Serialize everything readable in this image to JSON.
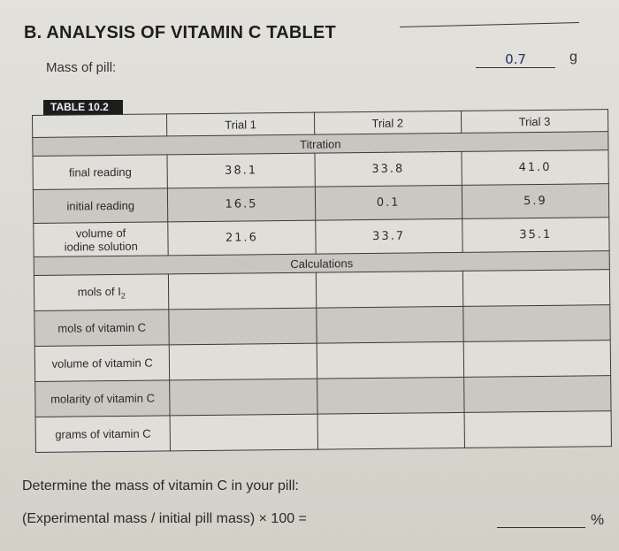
{
  "section_title": "B. ANALYSIS OF VITAMIN C TABLET",
  "mass_of_pill": {
    "label": "Mass of pill:",
    "value": "0.7",
    "unit": "g"
  },
  "table": {
    "tag": "TABLE 10.2",
    "columns": [
      "",
      "Trial 1",
      "Trial 2",
      "Trial 3"
    ],
    "titration_header": "Titration",
    "titration_rows": [
      {
        "label": "final reading",
        "values": [
          "38.1",
          "33.8",
          "41.0"
        ]
      },
      {
        "label": "initial reading",
        "values": [
          "16.5",
          "0.1",
          "5.9"
        ]
      },
      {
        "label_line1": "volume of",
        "label_line2": "iodine solution",
        "values": [
          "21.6",
          "33.7",
          "35.1"
        ]
      }
    ],
    "calculations_header": "Calculations",
    "calculation_rows": [
      {
        "label": "mols of I",
        "subscript": "2",
        "values": [
          "",
          "",
          ""
        ]
      },
      {
        "label": "mols of vitamin C",
        "values": [
          "",
          "",
          ""
        ]
      },
      {
        "label": "volume of vitamin C",
        "values": [
          "",
          "",
          ""
        ]
      },
      {
        "label": "molarity of vitamin C",
        "values": [
          "",
          "",
          ""
        ]
      },
      {
        "label": "grams of vitamin C",
        "values": [
          "",
          "",
          ""
        ]
      }
    ]
  },
  "questions": {
    "q1": "Determine the mass of vitamin C in your pill:",
    "q2": "(Experimental mass / initial pill mass) × 100 =",
    "q2_answer": "",
    "q2_unit": "%"
  }
}
